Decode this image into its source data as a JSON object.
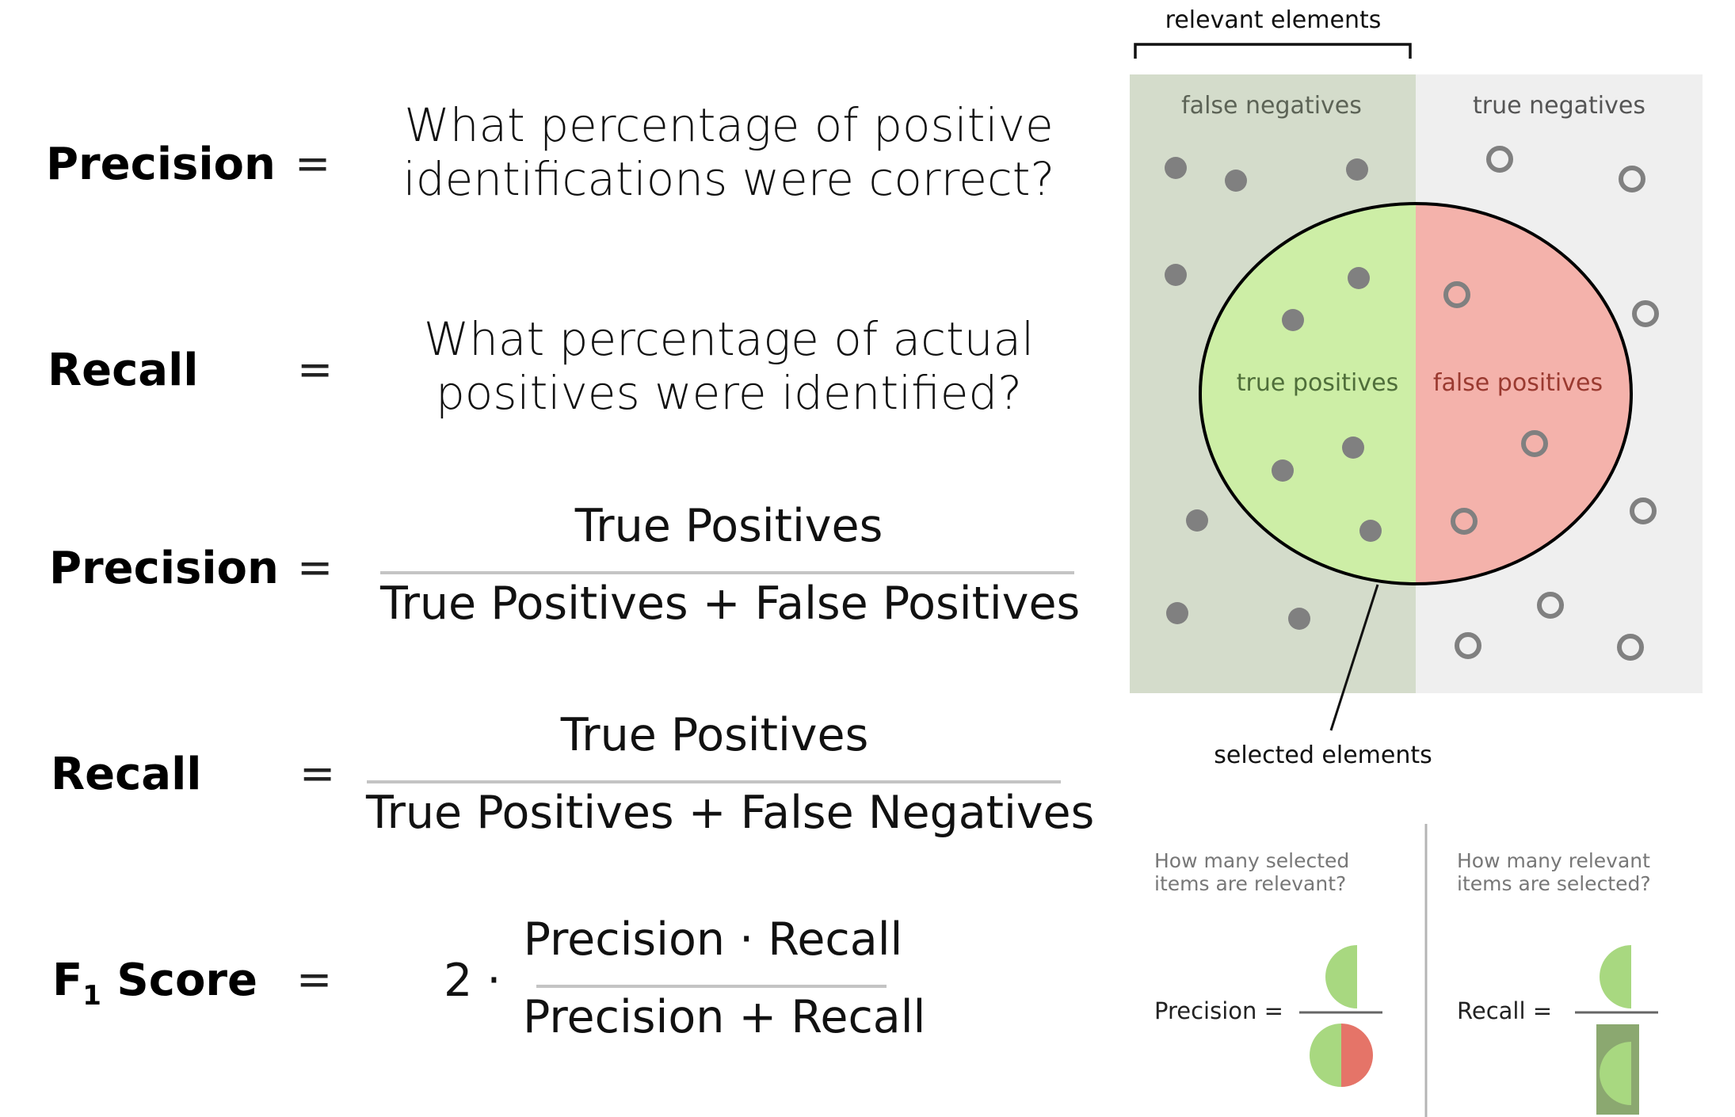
{
  "formulas": {
    "precision_q": {
      "term": "Precision",
      "equals": "=",
      "question_line1": "What percentage of positive",
      "question_line2": "identifications were correct?"
    },
    "recall_q": {
      "term": "Recall",
      "equals": "=",
      "question_line1": "What percentage of actual",
      "question_line2": "positives were identified?"
    },
    "precision_f": {
      "term": "Precision",
      "equals": "=",
      "numerator": "True Positives",
      "denominator": "True Positives + False Positives"
    },
    "recall_f": {
      "term": "Recall",
      "equals": "=",
      "numerator": "True Positives",
      "denominator": "True Positives + False Negatives"
    },
    "f1": {
      "term_prefix": "F",
      "term_sub": "1",
      "term_suffix": " Score",
      "equals": "=",
      "factor": "2 ·",
      "numerator": "Precision · Recall",
      "denominator": "Precision + Recall"
    }
  },
  "diagram": {
    "relevant_label": "relevant elements",
    "false_negatives_label": "false negatives",
    "true_negatives_label": "true negatives",
    "true_positives_label": "true positives",
    "false_positives_label": "false positives",
    "selected_label": "selected elements",
    "colors": {
      "relevant_bg": "#d4dccb",
      "irrelevant_bg": "#efefef",
      "true_positive": "#cdeea6",
      "false_positive": "#f4b2ab",
      "dot": "#808080",
      "half_green": "#a8d880",
      "half_red": "#e57468",
      "dark_green": "#8ba870"
    },
    "bottom": {
      "precision_question_line1": "How many selected",
      "precision_question_line2": "items are relevant?",
      "recall_question_line1": "How many relevant",
      "recall_question_line2": "items are selected?",
      "precision_label": "Precision =",
      "recall_label": "Recall ="
    }
  }
}
